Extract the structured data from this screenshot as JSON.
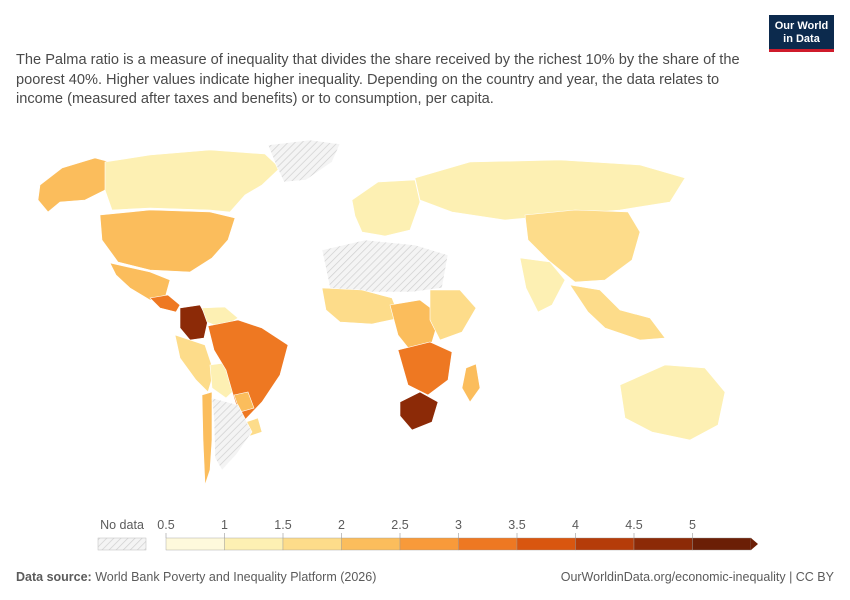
{
  "logo": {
    "line1": "Our World",
    "line2": "in Data"
  },
  "subtitle": "The Palma ratio is a measure of inequality that divides the share received by the richest 10% by the share of the poorest 40%. Higher values indicate higher inequality. Depending on the country and year, the data relates to income (measured after taxes and benefits) or to consumption, per capita.",
  "legend": {
    "no_data_label": "No data",
    "ticks": [
      "0.5",
      "1",
      "1.5",
      "2",
      "2.5",
      "3",
      "3.5",
      "4",
      "4.5",
      "5"
    ],
    "colors": [
      "#fef9dc",
      "#fdf0b3",
      "#fddc8a",
      "#fbbd5c",
      "#f89a3a",
      "#ee7822",
      "#d9560f",
      "#b53c09",
      "#8c2a07",
      "#6b1f06"
    ]
  },
  "footer": {
    "source_label": "Data source:",
    "source_text": " World Bank Poverty and Inequality Platform (2026)",
    "right_text": "OurWorldinData.org/economic-inequality | CC BY"
  },
  "map_regions": [
    {
      "name": "alaska",
      "value": 2.0
    },
    {
      "name": "canada",
      "value": 1.0
    },
    {
      "name": "greenland",
      "value": null
    },
    {
      "name": "usa",
      "value": 2.2
    },
    {
      "name": "mexico",
      "value": 2.4
    },
    {
      "name": "central-america",
      "value": 3.0
    },
    {
      "name": "colombia",
      "value": 4.6
    },
    {
      "name": "venezuela",
      "value": 1.2
    },
    {
      "name": "ecuador-peru",
      "value": 1.6
    },
    {
      "name": "bolivia",
      "value": 1.4
    },
    {
      "name": "brazil",
      "value": 3.2
    },
    {
      "name": "paraguay",
      "value": 2.0
    },
    {
      "name": "uruguay",
      "value": 1.6
    },
    {
      "name": "chile",
      "value": 2.2
    },
    {
      "name": "argentina",
      "value": null
    },
    {
      "name": "western-europe",
      "value": 1.0
    },
    {
      "name": "russia",
      "value": 1.4
    },
    {
      "name": "china",
      "value": 1.6
    },
    {
      "name": "india",
      "value": 1.0
    },
    {
      "name": "southeast-asia",
      "value": 1.6
    },
    {
      "name": "australia",
      "value": 1.0
    },
    {
      "name": "north-africa",
      "value": null
    },
    {
      "name": "west-africa",
      "value": 1.6
    },
    {
      "name": "central-africa",
      "value": 2.2
    },
    {
      "name": "east-africa",
      "value": 1.6
    },
    {
      "name": "southern-africa",
      "value": 3.2
    },
    {
      "name": "south-africa",
      "value": 4.6
    },
    {
      "name": "madagascar",
      "value": 2.0
    }
  ]
}
